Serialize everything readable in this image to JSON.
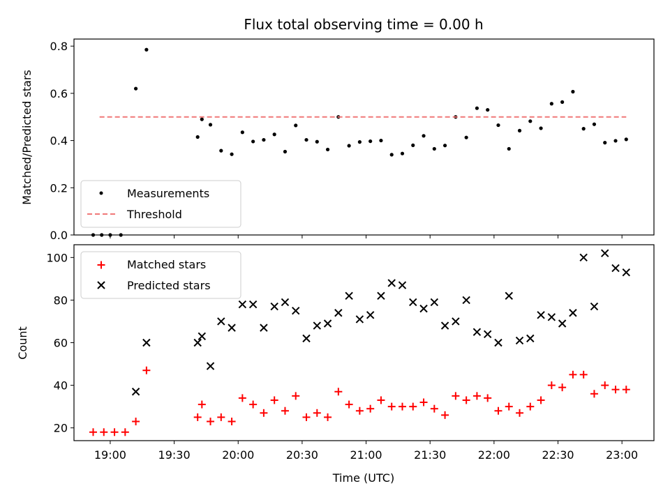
{
  "chart_data": [
    {
      "type": "scatter",
      "title": "Flux total observing time = 0.00 h",
      "ylabel": "Matched/Predicted stars",
      "ylim": [
        0,
        0.83
      ],
      "yticks": [
        "0.0",
        "0.2",
        "0.4",
        "0.6",
        "0.8"
      ],
      "xlim": [
        "18:43",
        "23:15"
      ],
      "legend_position": "lower-left",
      "series": [
        {
          "name": "Measurements",
          "marker": "dot",
          "color": "#000000",
          "x": [
            "18:52",
            "18:56",
            "19:00",
            "19:05",
            "19:12",
            "19:17",
            "19:41",
            "19:43",
            "19:47",
            "19:52",
            "19:57",
            "20:02",
            "20:07",
            "20:12",
            "20:17",
            "20:22",
            "20:27",
            "20:32",
            "20:37",
            "20:42",
            "20:47",
            "20:52",
            "20:57",
            "21:02",
            "21:07",
            "21:12",
            "21:17",
            "21:22",
            "21:27",
            "21:32",
            "21:37",
            "21:42",
            "21:47",
            "21:52",
            "21:57",
            "22:02",
            "22:07",
            "22:12",
            "22:17",
            "22:22",
            "22:27",
            "22:32",
            "22:37",
            "22:42",
            "22:47",
            "22:52",
            "22:57",
            "23:02"
          ],
          "y": [
            0.0,
            0.0,
            0.0,
            0.0,
            0.62,
            0.785,
            0.415,
            0.49,
            0.467,
            0.357,
            0.342,
            0.435,
            0.396,
            0.403,
            0.426,
            0.353,
            0.464,
            0.403,
            0.395,
            0.362,
            0.5,
            0.378,
            0.394,
            0.397,
            0.4,
            0.34,
            0.345,
            0.38,
            0.42,
            0.365,
            0.379,
            0.5,
            0.413,
            0.537,
            0.53,
            0.465,
            0.365,
            0.442,
            0.482,
            0.452,
            0.556,
            0.563,
            0.607,
            0.45,
            0.469,
            0.391,
            0.399,
            0.405
          ]
        },
        {
          "name": "Threshold",
          "marker": "dashed-line",
          "color": "#f07878",
          "x": [
            "18:55",
            "23:02"
          ],
          "y": [
            0.5,
            0.5
          ]
        }
      ]
    },
    {
      "type": "scatter",
      "ylabel": "Count",
      "xlabel": "Time (UTC)",
      "ylim": [
        14,
        106
      ],
      "yticks": [
        "20",
        "40",
        "60",
        "80",
        "100"
      ],
      "xlim": [
        "18:43",
        "23:15"
      ],
      "xticks": [
        "19:00",
        "19:30",
        "20:00",
        "20:30",
        "21:00",
        "21:30",
        "22:00",
        "22:30",
        "23:00"
      ],
      "legend_position": "upper-left",
      "series": [
        {
          "name": "Matched stars",
          "marker": "plus",
          "color": "#ff0000",
          "x": [
            "18:52",
            "18:57",
            "19:02",
            "19:07",
            "19:12",
            "19:17",
            "19:41",
            "19:43",
            "19:47",
            "19:52",
            "19:57",
            "20:02",
            "20:07",
            "20:12",
            "20:17",
            "20:22",
            "20:27",
            "20:32",
            "20:37",
            "20:42",
            "20:47",
            "20:52",
            "20:57",
            "21:02",
            "21:07",
            "21:12",
            "21:17",
            "21:22",
            "21:27",
            "21:32",
            "21:37",
            "21:42",
            "21:47",
            "21:52",
            "21:57",
            "22:02",
            "22:07",
            "22:12",
            "22:17",
            "22:22",
            "22:27",
            "22:32",
            "22:37",
            "22:42",
            "22:47",
            "22:52",
            "22:57",
            "23:02"
          ],
          "y": [
            18,
            18,
            18,
            18,
            23,
            47,
            25,
            31,
            23,
            25,
            23,
            34,
            31,
            27,
            33,
            28,
            35,
            25,
            27,
            25,
            37,
            31,
            28,
            29,
            33,
            30,
            30,
            30,
            32,
            29,
            26,
            35,
            33,
            35,
            34,
            28,
            30,
            27,
            30,
            33,
            40,
            39,
            45,
            45,
            36,
            40,
            38,
            38
          ]
        },
        {
          "name": "Predicted stars",
          "marker": "x",
          "color": "#000000",
          "x": [
            "19:12",
            "19:17",
            "19:41",
            "19:43",
            "19:47",
            "19:52",
            "19:57",
            "20:02",
            "20:07",
            "20:12",
            "20:17",
            "20:22",
            "20:27",
            "20:32",
            "20:37",
            "20:42",
            "20:47",
            "20:52",
            "20:57",
            "21:02",
            "21:07",
            "21:12",
            "21:17",
            "21:22",
            "21:27",
            "21:32",
            "21:37",
            "21:42",
            "21:47",
            "21:52",
            "21:57",
            "22:02",
            "22:07",
            "22:12",
            "22:17",
            "22:22",
            "22:27",
            "22:32",
            "22:37",
            "22:42",
            "22:47",
            "22:52",
            "22:57",
            "23:02"
          ],
          "y": [
            37,
            60,
            60,
            63,
            49,
            70,
            67,
            78,
            78,
            67,
            77,
            79,
            75,
            62,
            68,
            69,
            74,
            82,
            71,
            73,
            82,
            88,
            87,
            79,
            76,
            79,
            68,
            70,
            80,
            65,
            64,
            60,
            82,
            61,
            62,
            73,
            72,
            69,
            74,
            100,
            77,
            102,
            95,
            93
          ]
        }
      ]
    }
  ]
}
